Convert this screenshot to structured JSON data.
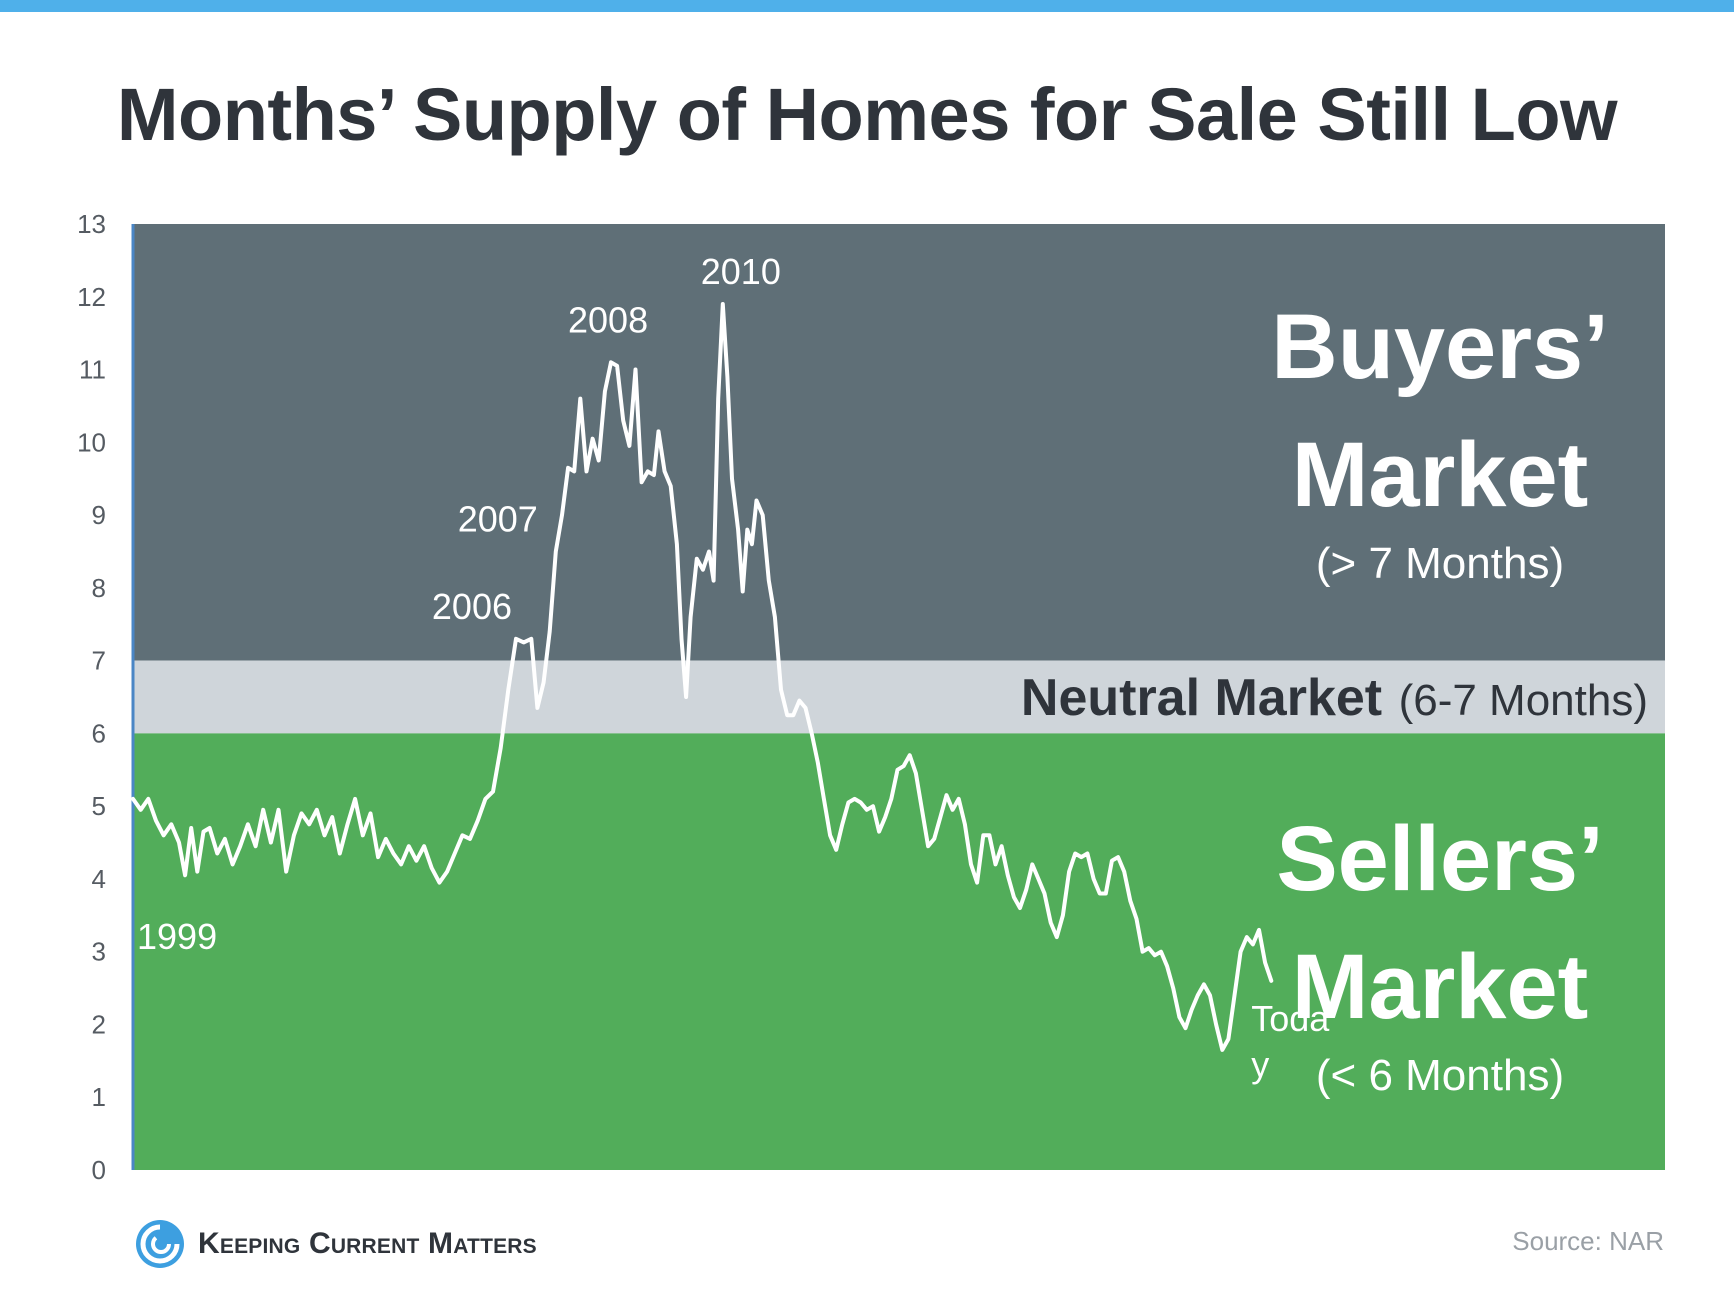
{
  "title": "Months’ Supply of Homes for Sale Still Low",
  "source": "Source: NAR",
  "brand": "Keeping Current Matters",
  "colors": {
    "top_bar": "#4fb0ea",
    "buyers_zone": "#5f6f77",
    "neutral_zone": "#cfd5da",
    "sellers_zone": "#52ad5a",
    "line": "#ffffff",
    "axis_line": "#4a86c5",
    "title": "#2f343b"
  },
  "zones": {
    "buyers": {
      "title_line1": "Buyers’",
      "title_line2": "Market",
      "subtitle": "(> 7 Months)",
      "range": [
        7,
        13
      ]
    },
    "neutral": {
      "title": "Neutral Market",
      "subtitle": "(6-7 Months)",
      "range": [
        6,
        7
      ]
    },
    "sellers": {
      "title_line1": "Sellers’",
      "title_line2": "Market",
      "subtitle": "(< 6 Months)",
      "range": [
        0,
        6
      ]
    }
  },
  "chart_data": {
    "type": "line",
    "title": "Months’ Supply of Homes for Sale Still Low",
    "xlabel": "",
    "ylabel": "",
    "ylim": [
      0,
      13
    ],
    "yticks": [
      0,
      1,
      2,
      3,
      4,
      5,
      6,
      7,
      8,
      9,
      10,
      11,
      12,
      13
    ],
    "x_range": [
      0,
      100
    ],
    "grid": false,
    "series": [
      {
        "values": [
          [
            0.0,
            5.1
          ],
          [
            0.5,
            4.95
          ],
          [
            1.0,
            5.1
          ],
          [
            1.5,
            4.8
          ],
          [
            2.0,
            4.6
          ],
          [
            2.5,
            4.75
          ],
          [
            3.0,
            4.5
          ],
          [
            3.4,
            4.05
          ],
          [
            3.8,
            4.7
          ],
          [
            4.2,
            4.1
          ],
          [
            4.6,
            4.65
          ],
          [
            5.0,
            4.7
          ],
          [
            5.5,
            4.35
          ],
          [
            6.0,
            4.55
          ],
          [
            6.5,
            4.2
          ],
          [
            7.0,
            4.45
          ],
          [
            7.5,
            4.75
          ],
          [
            8.0,
            4.45
          ],
          [
            8.5,
            4.95
          ],
          [
            9.0,
            4.5
          ],
          [
            9.5,
            4.95
          ],
          [
            10.0,
            4.1
          ],
          [
            10.5,
            4.6
          ],
          [
            11.0,
            4.9
          ],
          [
            11.5,
            4.75
          ],
          [
            12.0,
            4.95
          ],
          [
            12.5,
            4.6
          ],
          [
            13.0,
            4.85
          ],
          [
            13.5,
            4.35
          ],
          [
            14.0,
            4.75
          ],
          [
            14.5,
            5.1
          ],
          [
            15.0,
            4.6
          ],
          [
            15.5,
            4.9
          ],
          [
            16.0,
            4.3
          ],
          [
            16.5,
            4.55
          ],
          [
            17.0,
            4.35
          ],
          [
            17.5,
            4.2
          ],
          [
            18.0,
            4.45
          ],
          [
            18.5,
            4.25
          ],
          [
            19.0,
            4.45
          ],
          [
            19.5,
            4.15
          ],
          [
            20.0,
            3.95
          ],
          [
            20.5,
            4.1
          ],
          [
            21.0,
            4.35
          ],
          [
            21.5,
            4.6
          ],
          [
            22.0,
            4.55
          ],
          [
            22.5,
            4.8
          ],
          [
            23.0,
            5.1
          ],
          [
            23.5,
            5.2
          ],
          [
            24.0,
            5.8
          ],
          [
            24.5,
            6.6
          ],
          [
            25.0,
            7.3
          ],
          [
            25.5,
            7.25
          ],
          [
            26.0,
            7.3
          ],
          [
            26.4,
            6.35
          ],
          [
            26.8,
            6.7
          ],
          [
            27.2,
            7.4
          ],
          [
            27.6,
            8.5
          ],
          [
            28.0,
            9.0
          ],
          [
            28.4,
            9.65
          ],
          [
            28.8,
            9.6
          ],
          [
            29.2,
            10.6
          ],
          [
            29.6,
            9.6
          ],
          [
            30.0,
            10.05
          ],
          [
            30.4,
            9.75
          ],
          [
            30.8,
            10.7
          ],
          [
            31.2,
            11.1
          ],
          [
            31.6,
            11.05
          ],
          [
            32.0,
            10.3
          ],
          [
            32.4,
            9.95
          ],
          [
            32.8,
            11.0
          ],
          [
            33.2,
            9.45
          ],
          [
            33.6,
            9.6
          ],
          [
            34.0,
            9.55
          ],
          [
            34.3,
            10.15
          ],
          [
            34.7,
            9.6
          ],
          [
            35.1,
            9.4
          ],
          [
            35.5,
            8.6
          ],
          [
            35.8,
            7.3
          ],
          [
            36.1,
            6.5
          ],
          [
            36.4,
            7.6
          ],
          [
            36.8,
            8.4
          ],
          [
            37.2,
            8.25
          ],
          [
            37.6,
            8.5
          ],
          [
            37.9,
            8.1
          ],
          [
            38.2,
            10.6
          ],
          [
            38.5,
            11.9
          ],
          [
            38.8,
            10.9
          ],
          [
            39.1,
            9.5
          ],
          [
            39.5,
            8.8
          ],
          [
            39.8,
            7.95
          ],
          [
            40.1,
            8.8
          ],
          [
            40.4,
            8.6
          ],
          [
            40.7,
            9.2
          ],
          [
            41.1,
            9.0
          ],
          [
            41.5,
            8.1
          ],
          [
            41.9,
            7.6
          ],
          [
            42.3,
            6.6
          ],
          [
            42.7,
            6.25
          ],
          [
            43.1,
            6.25
          ],
          [
            43.5,
            6.45
          ],
          [
            43.9,
            6.35
          ],
          [
            44.3,
            6.0
          ],
          [
            44.7,
            5.6
          ],
          [
            45.1,
            5.1
          ],
          [
            45.5,
            4.6
          ],
          [
            45.9,
            4.4
          ],
          [
            46.3,
            4.75
          ],
          [
            46.7,
            5.05
          ],
          [
            47.1,
            5.1
          ],
          [
            47.5,
            5.05
          ],
          [
            47.9,
            4.95
          ],
          [
            48.3,
            5.0
          ],
          [
            48.7,
            4.65
          ],
          [
            49.1,
            4.85
          ],
          [
            49.5,
            5.1
          ],
          [
            49.9,
            5.5
          ],
          [
            50.3,
            5.55
          ],
          [
            50.7,
            5.7
          ],
          [
            51.1,
            5.45
          ],
          [
            51.5,
            4.95
          ],
          [
            51.9,
            4.45
          ],
          [
            52.3,
            4.55
          ],
          [
            52.7,
            4.85
          ],
          [
            53.1,
            5.15
          ],
          [
            53.5,
            4.95
          ],
          [
            53.9,
            5.1
          ],
          [
            54.3,
            4.75
          ],
          [
            54.7,
            4.2
          ],
          [
            55.1,
            3.95
          ],
          [
            55.5,
            4.6
          ],
          [
            55.9,
            4.6
          ],
          [
            56.3,
            4.2
          ],
          [
            56.7,
            4.45
          ],
          [
            57.1,
            4.05
          ],
          [
            57.5,
            3.75
          ],
          [
            57.9,
            3.6
          ],
          [
            58.3,
            3.85
          ],
          [
            58.7,
            4.2
          ],
          [
            59.1,
            4.0
          ],
          [
            59.5,
            3.8
          ],
          [
            59.9,
            3.4
          ],
          [
            60.3,
            3.2
          ],
          [
            60.7,
            3.5
          ],
          [
            61.1,
            4.1
          ],
          [
            61.5,
            4.35
          ],
          [
            61.9,
            4.3
          ],
          [
            62.3,
            4.35
          ],
          [
            62.7,
            4.0
          ],
          [
            63.1,
            3.8
          ],
          [
            63.5,
            3.8
          ],
          [
            63.9,
            4.25
          ],
          [
            64.3,
            4.3
          ],
          [
            64.7,
            4.1
          ],
          [
            65.1,
            3.7
          ],
          [
            65.5,
            3.45
          ],
          [
            65.9,
            3.0
          ],
          [
            66.3,
            3.05
          ],
          [
            66.7,
            2.95
          ],
          [
            67.1,
            3.0
          ],
          [
            67.5,
            2.8
          ],
          [
            67.9,
            2.5
          ],
          [
            68.3,
            2.1
          ],
          [
            68.7,
            1.95
          ],
          [
            69.1,
            2.2
          ],
          [
            69.5,
            2.4
          ],
          [
            69.9,
            2.55
          ],
          [
            70.3,
            2.4
          ],
          [
            70.7,
            2.0
          ],
          [
            71.1,
            1.65
          ],
          [
            71.5,
            1.8
          ],
          [
            71.9,
            2.4
          ],
          [
            72.3,
            3.0
          ],
          [
            72.7,
            3.2
          ],
          [
            73.1,
            3.1
          ],
          [
            73.5,
            3.3
          ],
          [
            73.9,
            2.85
          ],
          [
            74.3,
            2.6
          ]
        ]
      }
    ],
    "annotations": [
      {
        "text": "1999",
        "x": 0.0,
        "y": 4.0
      },
      {
        "text": "2006",
        "x": 25.0,
        "y": 7.3
      },
      {
        "text": "2007",
        "x": 27.6,
        "y": 8.5
      },
      {
        "text": "2008",
        "x": 31.4,
        "y": 11.1
      },
      {
        "text": "2010",
        "x": 38.5,
        "y": 11.9
      },
      {
        "text": "Today",
        "x": 74.3,
        "y": 2.6
      }
    ]
  }
}
